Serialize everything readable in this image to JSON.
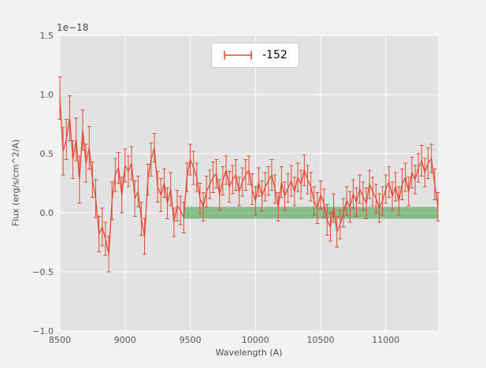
{
  "chart_data": {
    "type": "line",
    "title": "",
    "xlabel": "Wavelength (A)",
    "ylabel": "Flux (erg/s/cm^2/A)",
    "offset_text": "1e−18",
    "xlim": [
      8500,
      11400
    ],
    "ylim": [
      -1.0,
      1.5
    ],
    "xticks": [
      8500,
      9000,
      9500,
      10000,
      10500,
      11000
    ],
    "xtick_labels": [
      "8500",
      "9000",
      "9500",
      "10000",
      "10500",
      "11000"
    ],
    "yticks": [
      -1.0,
      -0.5,
      0.0,
      0.5,
      1.0,
      1.5
    ],
    "ytick_labels": [
      "−1.0",
      "−0.5",
      "0.0",
      "0.5",
      "1.0",
      "1.5"
    ],
    "grid": true,
    "legend": {
      "position": "upper center",
      "entries": [
        {
          "label": "-152",
          "marker": "errorbar",
          "color": "#E24A33"
        }
      ]
    },
    "style": {
      "figure_bg": "#f2f2f0",
      "axes_bg": "#e2e2e2",
      "grid_color": "#ffffff",
      "line_color": "#E24A33",
      "band_color": "#3f9b3f",
      "band_opacity": 0.55,
      "tick_color": "#555555"
    },
    "band": {
      "x0": 9450,
      "x1": 11400,
      "y0": -0.05,
      "y1": 0.05
    },
    "series": [
      {
        "name": "-152",
        "x": [
          8500,
          8525,
          8550,
          8575,
          8600,
          8625,
          8650,
          8675,
          8700,
          8725,
          8750,
          8775,
          8800,
          8825,
          8850,
          8875,
          8900,
          8925,
          8950,
          8975,
          9000,
          9025,
          9050,
          9075,
          9100,
          9125,
          9150,
          9175,
          9200,
          9225,
          9250,
          9275,
          9300,
          9325,
          9350,
          9375,
          9400,
          9425,
          9450,
          9475,
          9500,
          9525,
          9550,
          9575,
          9600,
          9625,
          9650,
          9675,
          9700,
          9725,
          9750,
          9775,
          9800,
          9825,
          9850,
          9875,
          9900,
          9925,
          9950,
          9975,
          10000,
          10025,
          10050,
          10075,
          10100,
          10125,
          10150,
          10175,
          10200,
          10225,
          10250,
          10275,
          10300,
          10325,
          10350,
          10375,
          10400,
          10425,
          10450,
          10475,
          10500,
          10525,
          10550,
          10575,
          10600,
          10625,
          10650,
          10675,
          10700,
          10725,
          10750,
          10775,
          10800,
          10825,
          10850,
          10875,
          10900,
          10925,
          10950,
          10975,
          11000,
          11025,
          11050,
          11075,
          11100,
          11125,
          11150,
          11175,
          11200,
          11225,
          11250,
          11275,
          11300,
          11325,
          11350,
          11375,
          11400
        ],
        "y": [
          0.97,
          0.52,
          0.62,
          0.8,
          0.45,
          0.62,
          0.28,
          0.7,
          0.42,
          0.55,
          0.28,
          0.12,
          -0.18,
          -0.12,
          -0.22,
          -0.35,
          0.1,
          0.32,
          0.38,
          0.15,
          0.4,
          0.35,
          0.42,
          0.12,
          0.18,
          -0.05,
          -0.2,
          0.28,
          0.45,
          0.55,
          0.22,
          0.15,
          0.25,
          0.08,
          0.2,
          -0.08,
          0.06,
          0.02,
          -0.04,
          0.3,
          0.45,
          0.38,
          0.3,
          0.12,
          0.05,
          0.18,
          0.24,
          0.3,
          0.33,
          0.15,
          0.27,
          0.36,
          0.22,
          0.28,
          0.32,
          0.18,
          0.26,
          0.32,
          0.36,
          0.2,
          0.1,
          0.26,
          0.14,
          0.22,
          0.27,
          0.32,
          0.2,
          0.05,
          0.26,
          0.14,
          0.21,
          0.27,
          0.18,
          0.3,
          0.24,
          0.36,
          0.28,
          0.22,
          0.1,
          0.04,
          0.15,
          0.08,
          -0.06,
          -0.12,
          0.04,
          -0.16,
          -0.1,
          0.0,
          0.1,
          0.05,
          0.16,
          0.09,
          0.2,
          0.14,
          0.08,
          0.24,
          0.18,
          0.12,
          0.04,
          0.1,
          0.2,
          0.26,
          0.14,
          0.22,
          0.1,
          0.24,
          0.3,
          0.18,
          0.34,
          0.28,
          0.38,
          0.44,
          0.34,
          0.42,
          0.46,
          0.24,
          0.05
        ],
        "yerr": [
          0.18,
          0.2,
          0.17,
          0.19,
          0.16,
          0.18,
          0.2,
          0.17,
          0.16,
          0.18,
          0.15,
          0.16,
          0.15,
          0.16,
          0.14,
          0.15,
          0.16,
          0.14,
          0.13,
          0.15,
          0.14,
          0.13,
          0.14,
          0.15,
          0.13,
          0.14,
          0.15,
          0.13,
          0.14,
          0.12,
          0.13,
          0.14,
          0.12,
          0.13,
          0.14,
          0.12,
          0.13,
          0.12,
          0.13,
          0.12,
          0.13,
          0.14,
          0.12,
          0.13,
          0.12,
          0.13,
          0.12,
          0.13,
          0.12,
          0.13,
          0.12,
          0.12,
          0.13,
          0.12,
          0.13,
          0.12,
          0.12,
          0.13,
          0.12,
          0.13,
          0.12,
          0.12,
          0.13,
          0.12,
          0.12,
          0.13,
          0.12,
          0.12,
          0.13,
          0.12,
          0.12,
          0.13,
          0.12,
          0.12,
          0.12,
          0.13,
          0.12,
          0.12,
          0.12,
          0.13,
          0.12,
          0.12,
          0.13,
          0.12,
          0.12,
          0.13,
          0.12,
          0.12,
          0.12,
          0.13,
          0.12,
          0.12,
          0.12,
          0.12,
          0.13,
          0.12,
          0.12,
          0.12,
          0.12,
          0.12,
          0.12,
          0.13,
          0.12,
          0.12,
          0.12,
          0.13,
          0.12,
          0.12,
          0.13,
          0.12,
          0.12,
          0.13,
          0.12,
          0.13,
          0.12,
          0.13,
          0.12
        ]
      }
    ]
  }
}
